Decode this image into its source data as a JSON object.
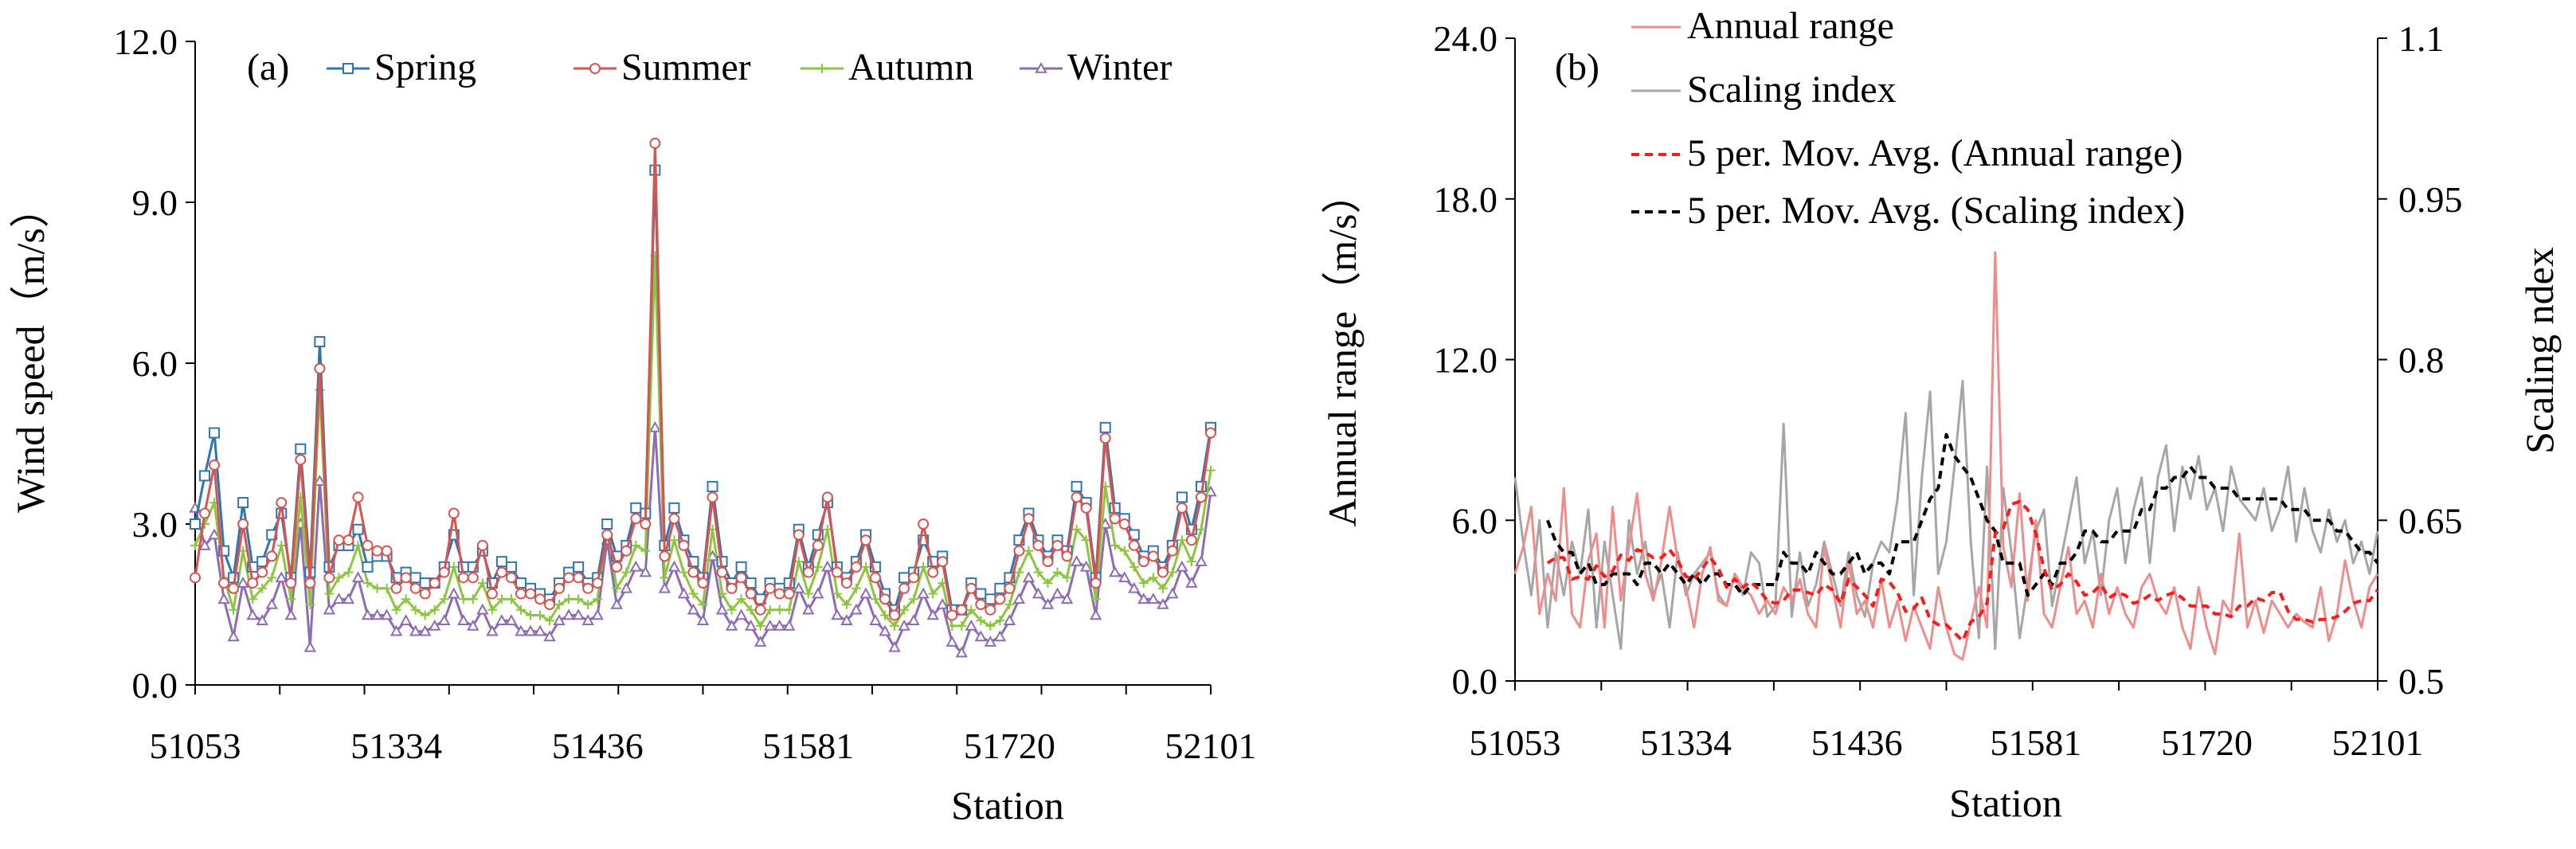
{
  "chart_data": [
    {
      "panel_label": "(a)",
      "type": "line",
      "xlabel": "Station",
      "ylabel": "Wind speed（m/s）",
      "ylim": [
        0,
        12
      ],
      "yticks": [
        "0.0",
        "3.0",
        "6.0",
        "9.0",
        "12.0"
      ],
      "xtick_labels": [
        "51053",
        "51334",
        "51436",
        "51581",
        "51720",
        "52101"
      ],
      "n_points": 107,
      "legend_position": "top",
      "series": [
        {
          "name": "Spring",
          "color": "#2e75b6",
          "marker": "square",
          "values": [
            3.0,
            3.9,
            4.7,
            2.5,
            2.0,
            3.4,
            2.2,
            2.3,
            2.8,
            3.2,
            2.0,
            4.4,
            2.1,
            6.4,
            2.2,
            2.6,
            2.6,
            2.9,
            2.2,
            2.4,
            2.4,
            2.0,
            2.1,
            2.0,
            1.9,
            1.9,
            2.2,
            2.8,
            2.2,
            2.2,
            2.5,
            1.9,
            2.3,
            2.2,
            1.9,
            1.8,
            1.7,
            1.6,
            1.9,
            2.1,
            2.2,
            1.9,
            2.0,
            3.0,
            2.4,
            2.6,
            3.3,
            3.2,
            9.6,
            2.6,
            3.3,
            2.7,
            2.3,
            2.0,
            3.7,
            2.3,
            1.9,
            2.2,
            1.9,
            1.6,
            1.9,
            1.8,
            1.9,
            2.9,
            2.2,
            2.8,
            3.4,
            2.2,
            2.0,
            2.3,
            2.8,
            2.2,
            1.7,
            1.4,
            2.0,
            2.1,
            2.7,
            2.3,
            2.4,
            1.4,
            1.4,
            1.9,
            1.7,
            1.6,
            1.8,
            2.0,
            2.7,
            3.2,
            2.7,
            2.4,
            2.7,
            2.5,
            3.7,
            3.4,
            2.0,
            4.8,
            3.3,
            3.1,
            2.8,
            2.4,
            2.5,
            2.2,
            2.6,
            3.5,
            2.9,
            3.7,
            4.8
          ]
        },
        {
          "name": "Summer",
          "color": "#d9534f",
          "marker": "circle",
          "values": [
            2.0,
            3.2,
            4.1,
            1.9,
            1.8,
            3.0,
            1.9,
            2.1,
            2.4,
            3.4,
            1.9,
            4.2,
            1.9,
            5.9,
            2.0,
            2.7,
            2.7,
            3.5,
            2.6,
            2.5,
            2.5,
            1.8,
            2.0,
            1.8,
            1.7,
            1.9,
            2.1,
            3.2,
            2.0,
            2.0,
            2.6,
            1.7,
            2.1,
            2.0,
            1.7,
            1.7,
            1.6,
            1.5,
            1.8,
            2.0,
            2.0,
            1.8,
            1.9,
            2.8,
            2.2,
            2.5,
            3.1,
            3.0,
            10.1,
            2.4,
            3.1,
            2.6,
            2.1,
            1.9,
            3.5,
            2.1,
            1.8,
            2.0,
            1.7,
            1.4,
            1.8,
            1.7,
            1.7,
            2.8,
            2.1,
            2.6,
            3.5,
            2.1,
            1.9,
            2.2,
            2.7,
            2.0,
            1.6,
            1.3,
            1.8,
            2.0,
            3.0,
            2.1,
            2.3,
            1.3,
            1.4,
            1.8,
            1.5,
            1.4,
            1.6,
            1.8,
            2.5,
            3.1,
            2.6,
            2.3,
            2.6,
            2.4,
            3.5,
            3.3,
            1.9,
            4.6,
            3.1,
            3.0,
            2.6,
            2.3,
            2.4,
            2.1,
            2.5,
            3.3,
            2.7,
            3.5,
            4.7
          ]
        },
        {
          "name": "Autumn",
          "color": "#8cc63f",
          "marker": "cross",
          "values": [
            2.6,
            3.0,
            3.4,
            2.0,
            1.4,
            2.5,
            1.6,
            1.8,
            2.0,
            2.6,
            1.6,
            3.5,
            1.5,
            5.5,
            1.7,
            2.0,
            2.1,
            2.6,
            1.9,
            1.8,
            1.8,
            1.4,
            1.6,
            1.4,
            1.3,
            1.4,
            1.6,
            2.2,
            1.6,
            1.6,
            1.9,
            1.4,
            1.6,
            1.6,
            1.4,
            1.3,
            1.3,
            1.2,
            1.5,
            1.6,
            1.6,
            1.5,
            1.6,
            3.0,
            1.8,
            2.1,
            2.6,
            2.5,
            8.0,
            2.0,
            2.7,
            2.1,
            1.7,
            1.5,
            2.9,
            1.7,
            1.4,
            1.6,
            1.4,
            1.1,
            1.4,
            1.4,
            1.4,
            2.3,
            1.7,
            2.2,
            2.9,
            1.7,
            1.5,
            1.8,
            2.2,
            1.6,
            1.3,
            1.1,
            1.4,
            1.6,
            2.2,
            1.7,
            1.9,
            1.1,
            1.1,
            1.4,
            1.2,
            1.1,
            1.2,
            1.5,
            2.1,
            2.5,
            2.1,
            1.9,
            2.1,
            2.0,
            2.9,
            2.7,
            1.6,
            3.7,
            2.6,
            2.5,
            2.2,
            1.9,
            2.0,
            1.8,
            2.1,
            2.7,
            2.3,
            2.9,
            4.0
          ]
        },
        {
          "name": "Winter",
          "color": "#8e6bb5",
          "marker": "triangle",
          "values": [
            3.3,
            2.6,
            2.8,
            1.6,
            0.9,
            1.9,
            1.3,
            1.2,
            1.5,
            2.0,
            1.3,
            3.0,
            0.7,
            3.8,
            1.4,
            1.6,
            1.6,
            2.0,
            1.3,
            1.3,
            1.3,
            1.0,
            1.2,
            1.0,
            1.0,
            1.1,
            1.2,
            1.7,
            1.2,
            1.1,
            1.4,
            1.0,
            1.2,
            1.2,
            1.0,
            1.0,
            1.0,
            0.9,
            1.2,
            1.3,
            1.3,
            1.2,
            1.3,
            2.7,
            1.5,
            1.8,
            2.2,
            2.1,
            4.8,
            1.8,
            2.2,
            1.7,
            1.4,
            1.2,
            2.4,
            1.4,
            1.1,
            1.3,
            1.1,
            0.8,
            1.1,
            1.1,
            1.1,
            1.8,
            1.4,
            1.7,
            2.2,
            1.3,
            1.2,
            1.4,
            1.7,
            1.2,
            1.0,
            0.7,
            1.1,
            1.2,
            1.7,
            1.3,
            1.5,
            0.8,
            0.6,
            1.1,
            0.9,
            0.8,
            0.9,
            1.2,
            1.6,
            2.0,
            1.7,
            1.5,
            1.7,
            1.6,
            2.3,
            2.2,
            1.3,
            3.0,
            2.1,
            2.0,
            1.8,
            1.6,
            1.6,
            1.5,
            1.7,
            2.2,
            1.9,
            2.3,
            3.6
          ]
        }
      ]
    },
    {
      "panel_label": "(b)",
      "type": "line",
      "xlabel": "Station",
      "ylabel_left": "Annual range（m/s）",
      "ylabel_right": "Scaling  ndex",
      "ylim_left": [
        0,
        24
      ],
      "ylim_right": [
        0.5,
        1.1
      ],
      "yticks_left": [
        "0.0",
        "6.0",
        "12.0",
        "18.0",
        "24.0"
      ],
      "yticks_right": [
        "0.5",
        "0.65",
        "0.8",
        "0.95",
        "1.1"
      ],
      "xtick_labels": [
        "51053",
        "51334",
        "51436",
        "51581",
        "51720",
        "52101"
      ],
      "n_points": 107,
      "legend_position": "top-left",
      "series": [
        {
          "name": "Annual range",
          "axis": "left",
          "color": "#f08c8c",
          "style": "solid",
          "values": [
            4.0,
            5.0,
            6.5,
            2.5,
            4.0,
            3.0,
            7.2,
            2.5,
            2.0,
            4.5,
            5.5,
            2.0,
            6.5,
            3.0,
            5.0,
            7.0,
            4.0,
            3.0,
            4.5,
            6.5,
            4.5,
            3.5,
            2.0,
            4.0,
            5.0,
            3.0,
            2.8,
            4.0,
            3.5,
            3.2,
            2.5,
            3.0,
            2.5,
            3.5,
            3.0,
            3.8,
            2.5,
            2.0,
            5.0,
            3.5,
            2.0,
            4.5,
            2.5,
            3.0,
            2.0,
            3.8,
            2.0,
            3.0,
            1.5,
            2.8,
            2.0,
            1.2,
            3.5,
            2.0,
            1.0,
            0.8,
            2.2,
            3.5,
            2.0,
            16.0,
            5.0,
            3.5,
            7.0,
            3.0,
            6.0,
            2.5,
            2.0,
            3.5,
            5.0,
            2.5,
            3.0,
            2.0,
            4.0,
            2.5,
            3.5,
            2.5,
            2.0,
            3.5,
            4.0,
            3.0,
            2.5,
            3.5,
            2.0,
            1.2,
            3.5,
            2.0,
            1.0,
            3.0,
            2.5,
            5.5,
            2.0,
            3.0,
            1.8,
            3.0,
            2.5,
            2.0,
            2.5,
            2.2,
            2.0,
            3.5,
            1.5,
            2.5,
            4.5,
            3.0,
            2.0,
            3.5,
            4.0
          ]
        },
        {
          "name": "Scaling index",
          "axis": "right",
          "color": "#a6a6a6",
          "style": "solid",
          "values": [
            0.69,
            0.63,
            0.58,
            0.65,
            0.55,
            0.62,
            0.58,
            0.63,
            0.6,
            0.66,
            0.55,
            0.63,
            0.58,
            0.53,
            0.65,
            0.6,
            0.63,
            0.58,
            0.6,
            0.55,
            0.62,
            0.58,
            0.6,
            0.61,
            0.62,
            0.58,
            0.57,
            0.6,
            0.58,
            0.62,
            0.61,
            0.56,
            0.57,
            0.74,
            0.56,
            0.62,
            0.57,
            0.59,
            0.63,
            0.6,
            0.57,
            0.62,
            0.58,
            0.56,
            0.61,
            0.63,
            0.62,
            0.67,
            0.75,
            0.58,
            0.69,
            0.77,
            0.6,
            0.63,
            0.7,
            0.78,
            0.63,
            0.54,
            0.7,
            0.53,
            0.68,
            0.62,
            0.54,
            0.59,
            0.64,
            0.66,
            0.57,
            0.61,
            0.65,
            0.69,
            0.61,
            0.64,
            0.58,
            0.65,
            0.68,
            0.61,
            0.66,
            0.69,
            0.61,
            0.69,
            0.72,
            0.64,
            0.7,
            0.67,
            0.71,
            0.66,
            0.68,
            0.64,
            0.7,
            0.67,
            0.66,
            0.65,
            0.68,
            0.64,
            0.66,
            0.7,
            0.63,
            0.68,
            0.64,
            0.62,
            0.66,
            0.63,
            0.65,
            0.61,
            0.63,
            0.6,
            0.64
          ]
        },
        {
          "name": "5 per. Mov. Avg. (Annual range)",
          "axis": "left",
          "color": "#ff1a1a",
          "style": "dashed",
          "values": [
            null,
            null,
            null,
            null,
            4.4,
            4.6,
            4.6,
            3.8,
            3.9,
            3.8,
            4.3,
            3.9,
            4.1,
            4.7,
            4.5,
            4.9,
            4.8,
            4.6,
            4.6,
            4.9,
            4.5,
            3.9,
            3.8,
            4.2,
            4.6,
            4.2,
            3.5,
            3.8,
            3.5,
            3.7,
            3.4,
            3.0,
            2.9,
            3.0,
            3.4,
            3.4,
            3.3,
            3.2,
            3.6,
            3.4,
            2.9,
            3.8,
            3.5,
            3.2,
            2.8,
            3.8,
            3.7,
            3.3,
            2.6,
            2.7,
            3.1,
            2.3,
            2.1,
            2.1,
            1.8,
            1.5,
            2.2,
            2.4,
            2.9,
            5.5,
            5.7,
            6.6,
            6.7,
            6.4,
            5.5,
            4.2,
            3.4,
            3.6,
            4.0,
            3.7,
            3.2,
            3.3,
            3.6,
            3.1,
            3.3,
            3.2,
            2.9,
            3.0,
            3.2,
            3.0,
            3.2,
            3.3,
            3.1,
            2.8,
            2.8,
            2.8,
            2.5,
            2.5,
            2.4,
            2.8,
            2.8,
            3.1,
            3.0,
            3.3,
            3.3,
            2.6,
            2.3,
            2.3,
            2.2,
            2.3,
            2.3,
            2.4,
            2.6,
            2.9,
            3.0,
            3.0,
            3.4
          ]
        },
        {
          "name": "5 per. Mov. Avg. (Scaling index)",
          "axis": "right",
          "color": "#000000",
          "style": "dashed",
          "values": [
            null,
            null,
            null,
            null,
            0.65,
            0.63,
            0.62,
            0.62,
            0.6,
            0.61,
            0.59,
            0.59,
            0.6,
            0.6,
            0.6,
            0.59,
            0.61,
            0.61,
            0.6,
            0.61,
            0.6,
            0.59,
            0.6,
            0.59,
            0.6,
            0.6,
            0.59,
            0.59,
            0.58,
            0.59,
            0.59,
            0.59,
            0.59,
            0.62,
            0.61,
            0.61,
            0.6,
            0.62,
            0.61,
            0.6,
            0.6,
            0.61,
            0.62,
            0.6,
            0.61,
            0.61,
            0.6,
            0.63,
            0.63,
            0.63,
            0.65,
            0.67,
            0.68,
            0.73,
            0.71,
            0.7,
            0.69,
            0.67,
            0.65,
            0.64,
            0.61,
            0.61,
            0.61,
            0.58,
            0.59,
            0.6,
            0.59,
            0.61,
            0.61,
            0.62,
            0.64,
            0.64,
            0.63,
            0.63,
            0.64,
            0.64,
            0.64,
            0.66,
            0.66,
            0.68,
            0.68,
            0.69,
            0.69,
            0.7,
            0.69,
            0.69,
            0.68,
            0.68,
            0.68,
            0.67,
            0.67,
            0.67,
            0.67,
            0.67,
            0.67,
            0.66,
            0.66,
            0.66,
            0.65,
            0.65,
            0.65,
            0.64,
            0.64,
            0.63,
            0.62,
            0.62,
            0.61
          ]
        }
      ]
    }
  ]
}
